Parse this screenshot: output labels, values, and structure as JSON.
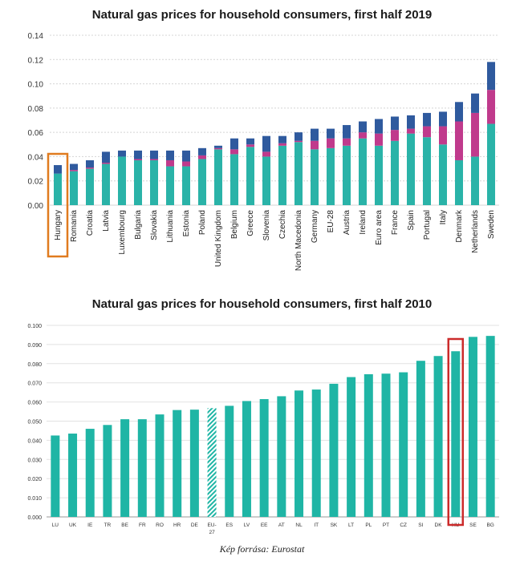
{
  "chart_data": [
    {
      "type": "bar",
      "stacked": true,
      "title": "Natural gas prices for household consumers, first half 2019",
      "ylim": [
        0,
        0.14
      ],
      "yticks": [
        "0.00",
        "0.02",
        "0.04",
        "0.06",
        "0.08",
        "0.10",
        "0.12",
        "0.14"
      ],
      "grid": true,
      "highlight": "Hungary",
      "highlight_color": "#e07b1f",
      "categories": [
        "Hungary",
        "Romania",
        "Croatia",
        "Latvia",
        "Luxembourg",
        "Bulgaria",
        "Slovakia",
        "Lithuania",
        "Estonia",
        "Poland",
        "United Kingdom",
        "Belgium",
        "Greece",
        "Slovenia",
        "Czechia",
        "North Macedonia",
        "Germany",
        "EU-28",
        "Austria",
        "Ireland",
        "Euro area",
        "France",
        "Spain",
        "Portugal",
        "Italy",
        "Denmark",
        "Netherlands",
        "Sweden"
      ],
      "series": [
        {
          "color": "#2ab3a8",
          "values": [
            0.026,
            0.028,
            0.03,
            0.034,
            0.04,
            0.037,
            0.037,
            0.032,
            0.032,
            0.038,
            0.046,
            0.042,
            0.048,
            0.04,
            0.049,
            0.052,
            0.046,
            0.047,
            0.049,
            0.055,
            0.049,
            0.053,
            0.059,
            0.056,
            0.05,
            0.037,
            0.04,
            0.067
          ]
        },
        {
          "color": "#c03a8c",
          "values": [
            0.0,
            0.001,
            0.001,
            0.001,
            0.0,
            0.001,
            0.001,
            0.005,
            0.004,
            0.003,
            0.001,
            0.004,
            0.002,
            0.004,
            0.002,
            0.001,
            0.007,
            0.008,
            0.006,
            0.005,
            0.01,
            0.009,
            0.004,
            0.009,
            0.015,
            0.032,
            0.036,
            0.028
          ]
        },
        {
          "color": "#2f5a9e",
          "values": [
            0.007,
            0.005,
            0.006,
            0.009,
            0.005,
            0.007,
            0.007,
            0.008,
            0.009,
            0.006,
            0.002,
            0.009,
            0.005,
            0.013,
            0.006,
            0.007,
            0.01,
            0.008,
            0.011,
            0.009,
            0.012,
            0.011,
            0.011,
            0.011,
            0.012,
            0.016,
            0.016,
            0.023
          ]
        }
      ]
    },
    {
      "type": "bar",
      "title": "Natural gas prices for household consumers, first half 2010",
      "ylim": [
        0,
        0.1
      ],
      "yticks": [
        "0.000",
        "0.010",
        "0.020",
        "0.030",
        "0.040",
        "0.050",
        "0.060",
        "0.070",
        "0.080",
        "0.090",
        "0.100"
      ],
      "grid": true,
      "highlight": "HU",
      "highlight_color": "#cc2b2b",
      "hatched": "EU-27",
      "color": "#1fb5a5",
      "categories": [
        "LU",
        "UK",
        "IE",
        "TR",
        "BE",
        "FR",
        "RO",
        "HR",
        "DE",
        "EU-27",
        "ES",
        "LV",
        "EE",
        "AT",
        "NL",
        "IT",
        "SK",
        "LT",
        "PL",
        "PT",
        "CZ",
        "SI",
        "DK",
        "HU",
        "SE",
        "BG"
      ],
      "values": [
        0.0425,
        0.0435,
        0.046,
        0.048,
        0.051,
        0.051,
        0.0535,
        0.0558,
        0.056,
        0.0568,
        0.058,
        0.0605,
        0.0615,
        0.063,
        0.066,
        0.0665,
        0.0695,
        0.073,
        0.0745,
        0.0748,
        0.0755,
        0.0815,
        0.084,
        0.0865,
        0.094,
        0.0945
      ]
    }
  ],
  "source_note": "Kép forrása: Eurostat"
}
